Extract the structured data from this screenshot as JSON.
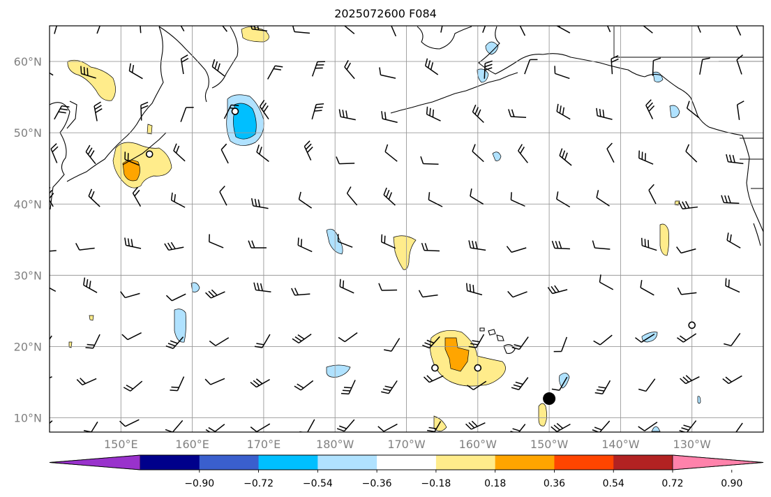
{
  "title": "2025072600 F084",
  "lat_labels": [
    "10°N",
    "20°N",
    "30°N",
    "40°N",
    "50°N",
    "60°N"
  ],
  "lat_values": [
    10,
    20,
    30,
    40,
    50,
    60
  ],
  "lon_labels": [
    "150°E",
    "160°E",
    "170°E",
    "180°W",
    "170°W",
    "160°W",
    "150°W",
    "140°W",
    "130°W"
  ],
  "lon_values": [
    150,
    160,
    170,
    180,
    190,
    200,
    210,
    220,
    230
  ],
  "map_extent": {
    "lon_min": 140,
    "lon_max": 240,
    "lat_min": 8,
    "lat_max": 65
  },
  "colorbar": {
    "colors": [
      "#9932CC",
      "#00008B",
      "#3A5FCD",
      "#00BFFF",
      "#B0E2FF",
      "#FFFFFF",
      "#FFEC8B",
      "#FFA500",
      "#FF4500",
      "#B22222",
      "#FF82AB"
    ],
    "ticks": [
      "−0.90",
      "−0.72",
      "−0.54",
      "−0.36",
      "−0.18",
      "0.18",
      "0.36",
      "0.54",
      "0.72",
      "0.90"
    ]
  },
  "colors": {
    "frame": "#000000",
    "grid": "#999999",
    "coast": "#000000"
  },
  "markers": [
    {
      "name": "open-circle",
      "lon": 166,
      "lat": 53
    },
    {
      "name": "open-circle",
      "lon": 154,
      "lat": 47
    },
    {
      "name": "open-circle",
      "lon": 230,
      "lat": 23
    },
    {
      "name": "open-circle",
      "lon": 194,
      "lat": 17
    },
    {
      "name": "open-circle",
      "lon": 200,
      "lat": 17
    },
    {
      "name": "filled-circle",
      "lon": 210,
      "lat": 12.7
    }
  ]
}
